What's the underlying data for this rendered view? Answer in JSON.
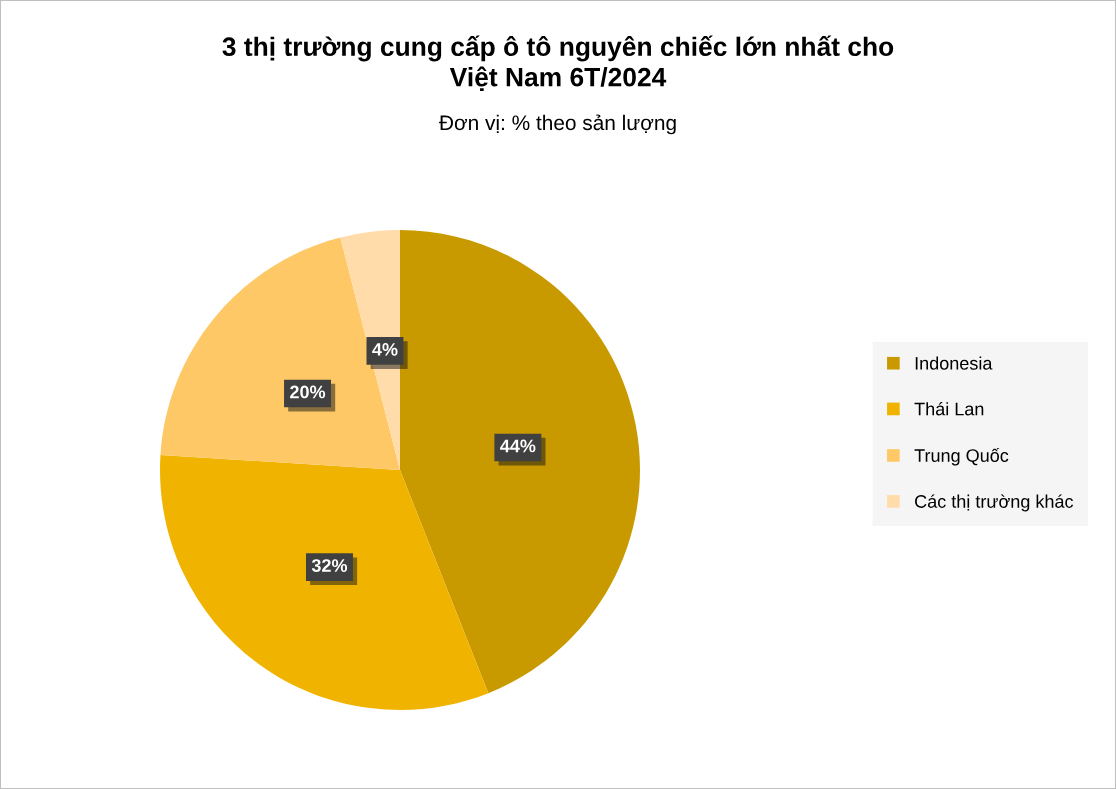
{
  "chart_data": {
    "type": "pie",
    "title": "3 thị trường cung cấp ô tô nguyên chiếc lớn nhất cho\nViệt Nam 6T/2024",
    "subtitle": "Đơn vị: % theo sản lượng",
    "categories": [
      "Indonesia",
      "Thái Lan",
      "Trung Quốc",
      "Các thị trường khác"
    ],
    "values": [
      44,
      32,
      20,
      4
    ],
    "colors": [
      "#c89a00",
      "#f0b400",
      "#ffc866",
      "#ffdcaa"
    ],
    "value_labels": [
      "44%",
      "32%",
      "20%",
      "4%"
    ],
    "legend": "right"
  }
}
